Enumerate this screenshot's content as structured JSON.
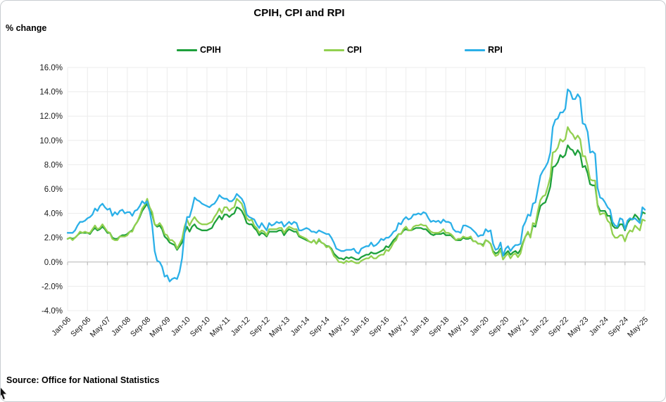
{
  "chart": {
    "title": "CPIH, CPI and RPI",
    "y_axis_label": "% change",
    "source": "Source: Office for National Statistics"
  },
  "chart_data": {
    "type": "line",
    "title": "CPIH, CPI and RPI",
    "xlabel": "",
    "ylabel": "% change",
    "x_frequency": "monthly",
    "x_start": "Jan-06",
    "x_end": "May-25",
    "n_points": 233,
    "ylim": [
      -4,
      16
    ],
    "y_tick_step": 2,
    "grid": true,
    "legend_position": "top",
    "x_tick_labels": [
      "Jan-06",
      "Sep-06",
      "May-07",
      "Jan-08",
      "Sep-08",
      "May-09",
      "Jan-10",
      "Sep-10",
      "May-11",
      "Jan-12",
      "Sep-12",
      "May-13",
      "Jan-14",
      "Sep-14",
      "May-15",
      "Jan-16",
      "Sep-16",
      "May-17",
      "Jan-18",
      "Sep-18",
      "May-19",
      "Jan-20",
      "Sep-20",
      "May-21",
      "Jan-22",
      "Sep-22",
      "May-23",
      "Jan-24",
      "Sep-24",
      "May-25"
    ],
    "y_tick_labels": [
      "16.0%",
      "14.0%",
      "12.0%",
      "10.0%",
      "8.0%",
      "6.0%",
      "4.0%",
      "2.0%",
      "0.0%",
      "-2.0%",
      "-4.0%"
    ],
    "style": {
      "gridline_color": "#ececec",
      "axis_color": "#bfbfbf",
      "text_color": "#1a1a1a"
    },
    "series": [
      {
        "name": "CPIH",
        "color": "#1ea03c",
        "values": [
          1.9,
          2.0,
          1.9,
          2.0,
          2.2,
          2.4,
          2.4,
          2.4,
          2.4,
          2.3,
          2.6,
          2.8,
          2.6,
          2.7,
          2.9,
          2.7,
          2.4,
          2.4,
          2.0,
          1.9,
          1.9,
          2.1,
          2.2,
          2.2,
          2.3,
          2.5,
          2.6,
          3.0,
          3.3,
          3.7,
          4.2,
          4.5,
          4.8,
          4.2,
          3.9,
          3.1,
          2.9,
          3.0,
          2.7,
          2.1,
          1.9,
          1.6,
          1.5,
          1.4,
          1.0,
          1.3,
          1.6,
          2.4,
          2.9,
          2.5,
          2.9,
          3.1,
          2.8,
          2.7,
          2.6,
          2.6,
          2.6,
          2.7,
          2.8,
          3.2,
          3.5,
          3.8,
          3.5,
          3.9,
          3.9,
          3.7,
          3.9,
          4.0,
          4.5,
          4.4,
          4.2,
          3.8,
          3.2,
          3.1,
          3.1,
          2.8,
          2.6,
          2.2,
          2.4,
          2.3,
          2.1,
          2.5,
          2.5,
          2.5,
          2.5,
          2.6,
          2.6,
          2.2,
          2.5,
          2.7,
          2.6,
          2.5,
          2.5,
          2.1,
          2.0,
          1.9,
          1.8,
          1.7,
          1.6,
          1.8,
          1.5,
          1.8,
          1.6,
          1.5,
          1.3,
          1.3,
          1.1,
          0.7,
          0.5,
          0.3,
          0.3,
          0.2,
          0.4,
          0.3,
          0.4,
          0.3,
          0.2,
          0.2,
          0.4,
          0.5,
          0.6,
          0.6,
          0.8,
          0.7,
          0.7,
          0.8,
          0.9,
          1.0,
          1.3,
          1.2,
          1.5,
          1.8,
          2.0,
          2.3,
          2.3,
          2.6,
          2.7,
          2.6,
          2.6,
          2.7,
          2.8,
          2.8,
          2.8,
          2.7,
          2.7,
          2.5,
          2.3,
          2.2,
          2.3,
          2.3,
          2.3,
          2.4,
          2.2,
          2.2,
          2.2,
          2.0,
          1.8,
          1.8,
          1.8,
          2.0,
          1.9,
          1.9,
          2.0,
          1.7,
          1.7,
          1.5,
          1.5,
          1.4,
          1.8,
          1.7,
          1.5,
          0.9,
          0.7,
          0.8,
          1.1,
          0.5,
          0.7,
          0.9,
          0.6,
          0.8,
          0.9,
          0.7,
          1.0,
          1.6,
          2.1,
          2.4,
          2.1,
          3.0,
          2.9,
          3.8,
          4.6,
          4.8,
          4.9,
          5.5,
          6.2,
          7.8,
          7.9,
          8.2,
          8.8,
          8.6,
          8.8,
          9.6,
          9.3,
          9.2,
          8.8,
          9.2,
          8.9,
          7.8,
          7.9,
          7.3,
          6.4,
          6.3,
          6.3,
          4.7,
          4.2,
          4.2,
          4.2,
          3.8,
          3.8,
          3.0,
          2.8,
          2.8,
          3.1,
          3.1,
          2.6,
          3.2,
          3.5,
          3.5,
          3.9,
          3.7,
          3.4,
          4.1,
          4.0
        ]
      },
      {
        "name": "CPI",
        "color": "#92d050",
        "values": [
          1.9,
          2.0,
          1.8,
          2.0,
          2.2,
          2.5,
          2.4,
          2.5,
          2.4,
          2.4,
          2.7,
          3.0,
          2.7,
          2.8,
          3.1,
          2.8,
          2.5,
          2.4,
          1.9,
          1.8,
          1.8,
          2.1,
          2.1,
          2.1,
          2.2,
          2.5,
          2.5,
          3.0,
          3.3,
          3.8,
          4.4,
          4.7,
          5.2,
          4.5,
          4.1,
          3.1,
          3.0,
          3.2,
          2.9,
          2.3,
          2.2,
          1.8,
          1.8,
          1.6,
          1.1,
          1.5,
          1.9,
          2.9,
          3.5,
          3.0,
          3.4,
          3.7,
          3.4,
          3.2,
          3.1,
          3.1,
          3.1,
          3.2,
          3.3,
          3.7,
          4.0,
          4.4,
          4.0,
          4.5,
          4.5,
          4.2,
          4.4,
          4.5,
          5.2,
          5.0,
          4.8,
          4.2,
          3.6,
          3.4,
          3.5,
          3.0,
          2.8,
          2.4,
          2.6,
          2.5,
          2.2,
          2.7,
          2.7,
          2.7,
          2.7,
          2.8,
          2.8,
          2.4,
          2.7,
          2.9,
          2.8,
          2.7,
          2.7,
          2.2,
          2.1,
          2.0,
          1.9,
          1.7,
          1.6,
          1.8,
          1.5,
          1.9,
          1.6,
          1.5,
          1.2,
          1.3,
          1.0,
          0.5,
          0.3,
          0.0,
          0.0,
          -0.1,
          0.1,
          0.0,
          0.1,
          0.0,
          -0.1,
          -0.1,
          0.1,
          0.2,
          0.3,
          0.3,
          0.5,
          0.3,
          0.3,
          0.5,
          0.6,
          0.6,
          1.0,
          0.9,
          1.2,
          1.6,
          1.8,
          2.3,
          2.3,
          2.7,
          2.9,
          2.6,
          2.6,
          2.9,
          3.0,
          3.0,
          3.1,
          3.0,
          3.0,
          2.7,
          2.5,
          2.4,
          2.4,
          2.4,
          2.5,
          2.7,
          2.4,
          2.4,
          2.3,
          2.1,
          1.8,
          1.9,
          1.9,
          2.1,
          2.0,
          2.0,
          2.1,
          1.7,
          1.7,
          1.5,
          1.5,
          1.3,
          1.8,
          1.7,
          1.5,
          0.8,
          0.5,
          0.6,
          1.0,
          0.2,
          0.5,
          0.7,
          0.3,
          0.6,
          0.7,
          0.4,
          0.7,
          1.5,
          2.1,
          2.5,
          2.0,
          3.2,
          3.1,
          4.2,
          5.1,
          5.4,
          5.5,
          6.2,
          7.0,
          9.0,
          9.1,
          9.4,
          10.1,
          9.9,
          10.1,
          11.1,
          10.7,
          10.5,
          10.1,
          10.4,
          10.1,
          8.7,
          8.7,
          7.9,
          6.8,
          6.7,
          6.7,
          4.6,
          3.9,
          4.0,
          4.0,
          3.4,
          3.2,
          2.3,
          2.0,
          2.0,
          2.2,
          2.2,
          1.7,
          2.3,
          2.6,
          2.5,
          3.0,
          2.8,
          2.6,
          3.5,
          3.4
        ]
      },
      {
        "name": "RPI",
        "color": "#2bb0e8",
        "values": [
          2.4,
          2.4,
          2.4,
          2.6,
          3.0,
          3.3,
          3.3,
          3.4,
          3.6,
          3.7,
          3.9,
          4.4,
          4.2,
          4.6,
          4.8,
          4.5,
          4.3,
          4.4,
          3.8,
          4.1,
          3.9,
          4.2,
          4.3,
          4.0,
          4.1,
          4.1,
          3.8,
          4.2,
          4.3,
          4.6,
          5.0,
          4.8,
          5.0,
          4.2,
          3.0,
          0.9,
          0.1,
          0.0,
          -0.4,
          -1.2,
          -1.1,
          -1.6,
          -1.4,
          -1.3,
          -1.4,
          -0.8,
          0.3,
          2.4,
          3.7,
          3.7,
          4.4,
          5.3,
          5.1,
          5.0,
          4.8,
          4.7,
          4.6,
          4.5,
          4.7,
          4.8,
          5.1,
          5.5,
          5.3,
          5.2,
          5.2,
          5.0,
          5.0,
          5.2,
          5.6,
          5.4,
          5.2,
          4.8,
          3.9,
          3.7,
          3.6,
          3.5,
          3.1,
          2.8,
          3.2,
          2.9,
          2.6,
          3.2,
          3.0,
          3.1,
          3.3,
          3.2,
          3.3,
          2.9,
          3.1,
          3.3,
          3.1,
          3.3,
          3.2,
          2.6,
          2.6,
          2.7,
          2.8,
          2.7,
          2.5,
          2.5,
          2.4,
          2.6,
          2.5,
          2.4,
          2.3,
          2.3,
          2.0,
          1.6,
          1.1,
          1.0,
          0.9,
          0.9,
          1.0,
          1.0,
          1.0,
          1.1,
          0.8,
          0.7,
          1.1,
          1.2,
          1.3,
          1.3,
          1.6,
          1.3,
          1.4,
          1.6,
          1.9,
          1.8,
          2.0,
          2.0,
          2.2,
          2.5,
          2.6,
          3.2,
          3.1,
          3.5,
          3.7,
          3.5,
          3.6,
          3.9,
          3.9,
          4.0,
          3.9,
          4.1,
          4.0,
          3.6,
          3.3,
          3.4,
          3.3,
          3.4,
          3.2,
          3.5,
          3.3,
          3.3,
          3.2,
          2.7,
          2.5,
          2.5,
          2.4,
          3.0,
          3.0,
          2.9,
          2.8,
          2.6,
          2.4,
          2.1,
          2.2,
          2.2,
          2.7,
          2.5,
          2.6,
          1.5,
          1.0,
          1.1,
          1.6,
          0.5,
          1.1,
          1.3,
          0.9,
          1.2,
          1.4,
          1.4,
          1.5,
          2.9,
          3.3,
          3.9,
          3.8,
          4.8,
          4.9,
          6.0,
          7.1,
          7.5,
          7.8,
          8.2,
          9.0,
          11.1,
          11.7,
          11.8,
          12.3,
          12.3,
          12.6,
          14.2,
          14.0,
          13.4,
          13.4,
          13.8,
          13.5,
          11.4,
          11.3,
          10.7,
          9.0,
          9.1,
          8.9,
          6.1,
          5.3,
          5.2,
          4.9,
          4.5,
          4.3,
          3.3,
          3.0,
          2.9,
          3.6,
          3.5,
          2.7,
          3.4,
          3.6,
          3.5,
          3.6,
          3.4,
          3.2,
          4.5,
          4.3
        ]
      }
    ]
  }
}
